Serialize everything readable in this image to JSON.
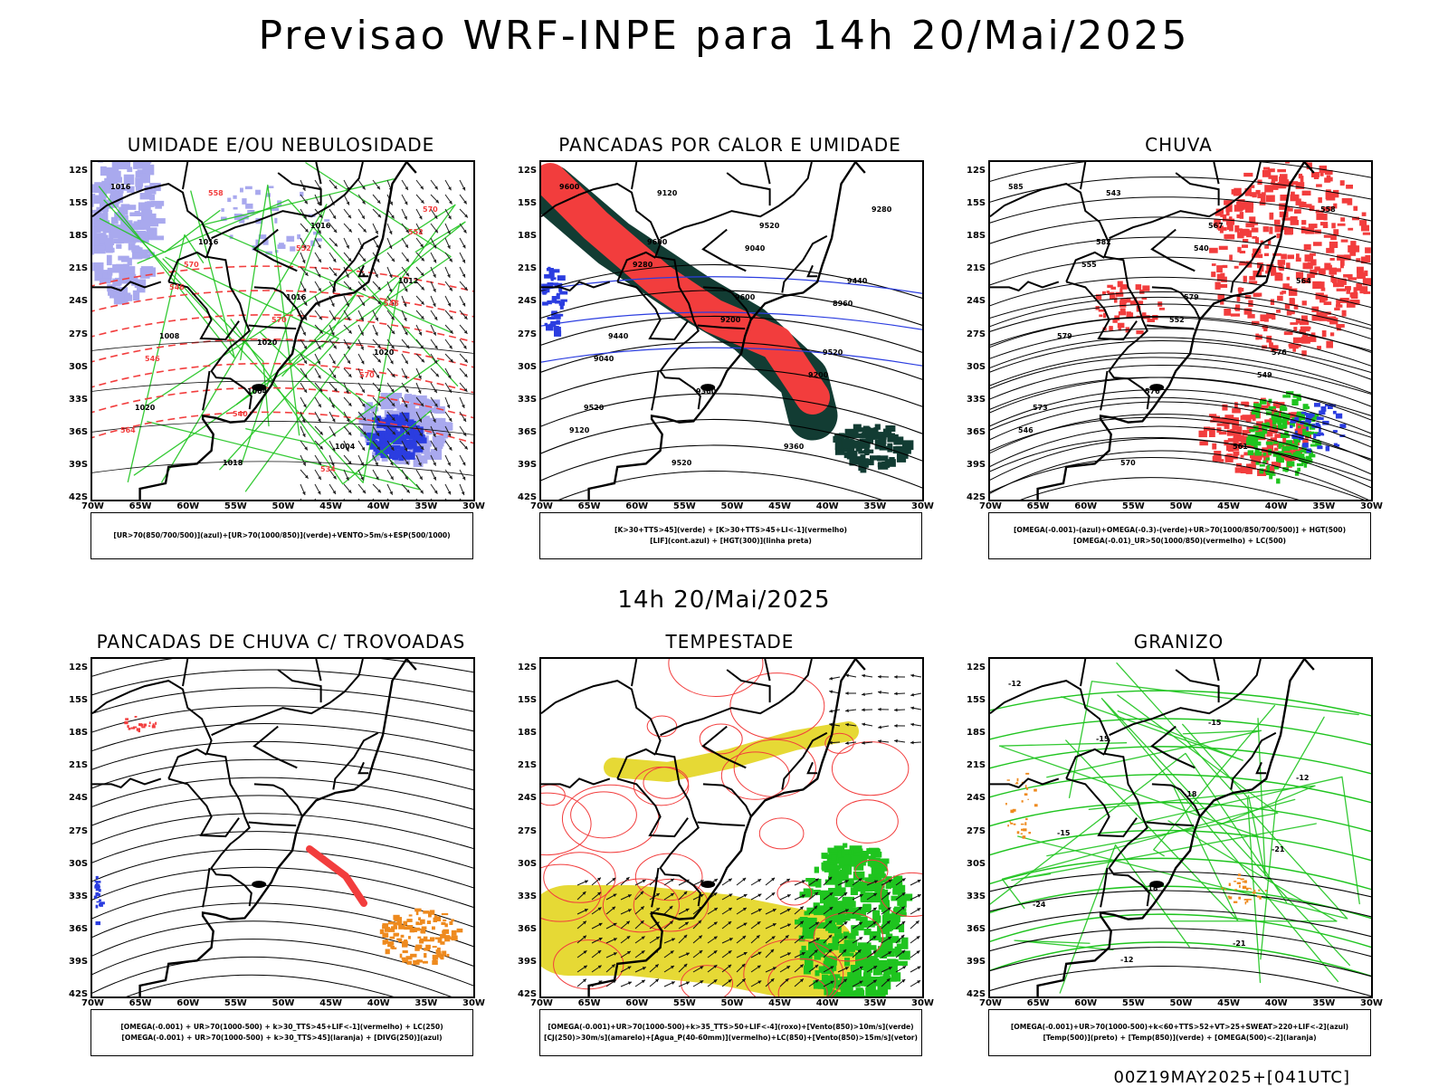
{
  "title": "Previsao WRF-INPE  para 14h 20/Mai/2025",
  "mid_title": "14h 20/Mai/2025",
  "footer": "00Z19MAY2025+[041UTC]",
  "lat_labels": [
    "12S",
    "15S",
    "18S",
    "21S",
    "24S",
    "27S",
    "30S",
    "33S",
    "36S",
    "39S",
    "42S"
  ],
  "lon_labels": [
    "70W",
    "65W",
    "60W",
    "55W",
    "50W",
    "45W",
    "40W",
    "35W",
    "30W"
  ],
  "panels": [
    {
      "title": "UMIDADE E/OU NEBULOSIDADE",
      "legend": [
        "[UR>70(850/700/500)](azul)+[UR>70(1000/850)](verde)+VENTO>5m/s+ESP(500/1000)"
      ],
      "labels": [
        "1016",
        "1016",
        "1016",
        "1020",
        "1020",
        "1018",
        "1016",
        "1012",
        "1008",
        "1004",
        "1004",
        "570",
        "570",
        "570",
        "570",
        "564",
        "558",
        "552",
        "546",
        "546",
        "540",
        "534",
        "552",
        "546",
        "1020"
      ]
    },
    {
      "title": "PANCADAS POR CALOR E UMIDADE",
      "legend": [
        "[K>30+TTS>45](verde) + [K>30+TTS>45+LI<-1](vermelho)",
        "[LIF](cont.azul) + [HGT(300)](linha preta)"
      ],
      "labels": [
        "9600",
        "9600",
        "9600",
        "9520",
        "9520",
        "9520",
        "9520",
        "9440",
        "9440",
        "9360",
        "9360",
        "9280",
        "9280",
        "9200",
        "9200",
        "9120",
        "9120",
        "9040",
        "8960",
        "9040"
      ]
    },
    {
      "title": "CHUVA",
      "legend": [
        "[OMEGA(-0.001)-(azul)+OMEGA(-0.3)-(verde)+UR>70(1000/850/700/500)] + HGT(500)",
        "[OMEGA(-0.01)_UR>50(1000/850)(vermelho) + LC(500)"
      ],
      "labels": [
        "585",
        "582",
        "579",
        "576",
        "573",
        "570",
        "567",
        "564",
        "579",
        "576",
        "561",
        "558",
        "555",
        "552",
        "549",
        "546",
        "543",
        "540"
      ]
    },
    {
      "title": "PANCADAS DE CHUVA C/ TROVOADAS",
      "legend": [
        "[OMEGA(-0.001) + UR>70(1000-500) + k>30_TTS>45+LIF<-1](vermelho) + LC(250)",
        "[OMEGA(-0.001) + UR>70(1000-500) + k>30_TTS>45](laranja) + [DIVG(250)](azul)"
      ],
      "labels": []
    },
    {
      "title": "TEMPESTADE",
      "legend": [
        "[OMEGA(-0.001)+UR>70(1000-500)+k>35_TTS>50+LIF<-4](roxo)+[Vento(850)>10m/s](verde)",
        "[CJ(250)>30m/s](amarelo)+[Agua_P(40-60mm)](vermelho)+LC(850)+[Vento(850)>15m/s](vetor)"
      ],
      "labels": []
    },
    {
      "title": "GRANIZO",
      "legend": [
        "[OMEGA(-0.001)+UR>70(1000-500)+k<60+TTS>52+VT>25+SWEAT>220+LIF<-2](azul)",
        "[Temp(500)](preto) + [Temp(850)](verde) + [OMEGA(500)<-2](laranja)"
      ],
      "labels": [
        "-12",
        "-15",
        "-18",
        "-21",
        "-24",
        "-12",
        "-15",
        "-12",
        "-15",
        "-18",
        "-21"
      ]
    }
  ],
  "colors": {
    "red": "#f23d3d",
    "green": "#1fc41f",
    "blue": "#2b3de0",
    "lightblue": "#a9a9ee",
    "darkgreen": "#123c33",
    "yellow": "#e6d935",
    "orange": "#ee8a1e"
  }
}
